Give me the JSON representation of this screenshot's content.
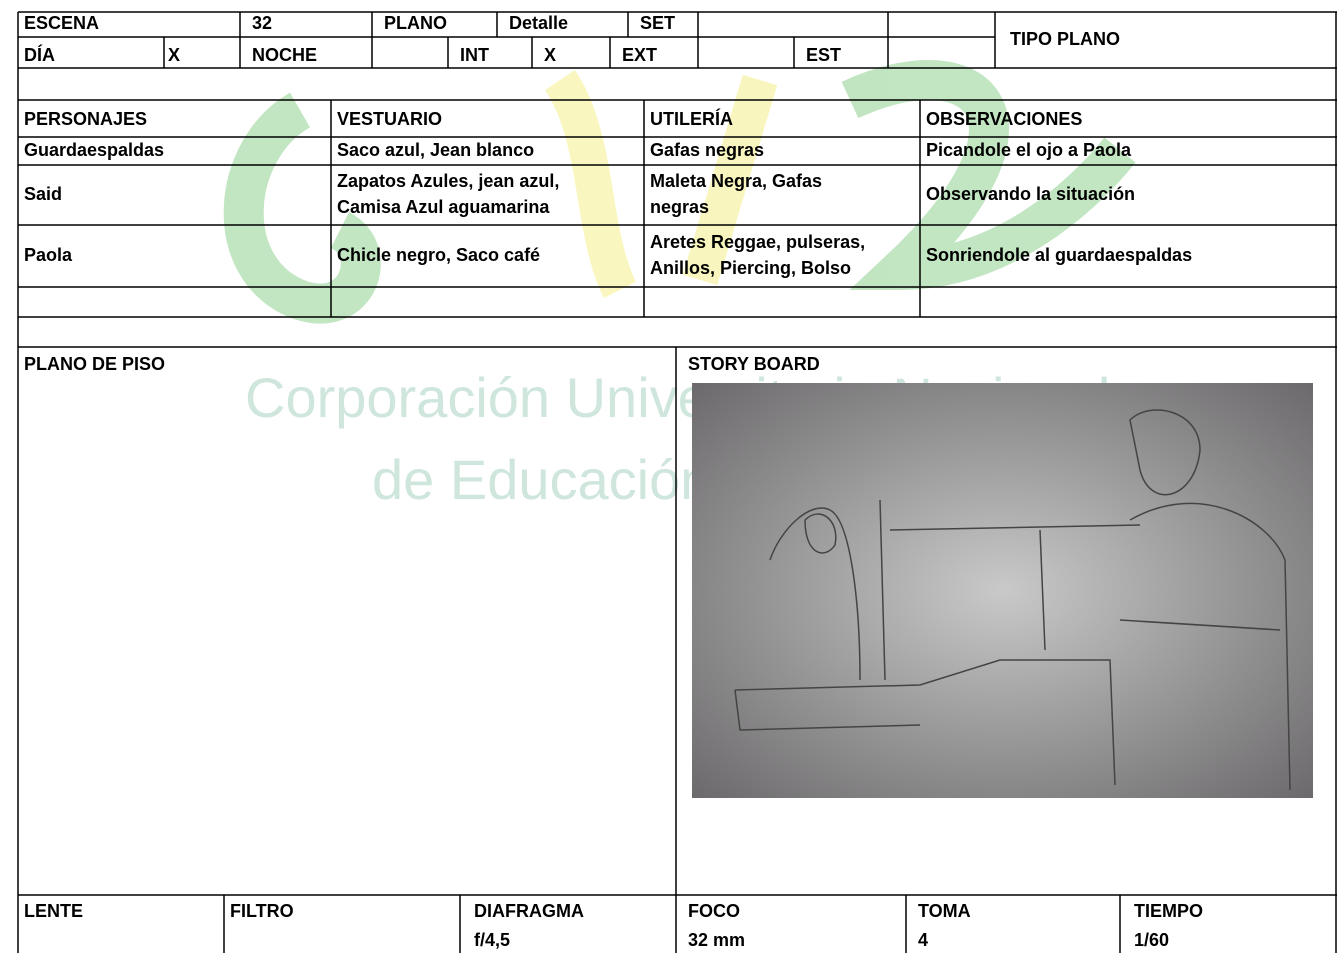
{
  "header": {
    "escena_label": "ESCENA",
    "escena": "32",
    "plano_label": "PLANO",
    "plano": "Detalle",
    "set_label": "SET",
    "tipo_plano_label": "TIPO PLANO",
    "dia_label": "DÍA",
    "dia": "X",
    "noche_label": "NOCHE",
    "int_label": "INT",
    "int": "X",
    "ext_label": "EXT",
    "est_label": "EST"
  },
  "breakdown": {
    "columns": [
      "PERSONAJES",
      "VESTUARIO",
      "UTILERÍA",
      "OBSERVACIONES"
    ],
    "rows": [
      [
        [
          "Guardaespaldas"
        ],
        [
          "Saco azul, Jean blanco"
        ],
        [
          "Gafas negras"
        ],
        [
          "Picandole el ojo a Paola"
        ]
      ],
      [
        [
          "Said"
        ],
        [
          "Zapatos Azules, jean azul,",
          "Camisa Azul aguamarina"
        ],
        [
          "Maleta Negra, Gafas",
          "negras"
        ],
        [
          "Observando la situación"
        ]
      ],
      [
        [
          "Paola"
        ],
        [
          "Chicle negro, Saco café"
        ],
        [
          "Aretes Reggae, pulseras,",
          "Anillos, Piercing, Bolso"
        ],
        [
          "Sonriendole al guardaespaldas"
        ]
      ]
    ]
  },
  "sections": {
    "plano_de_piso": "PLANO DE PISO",
    "story_board": "STORY BOARD"
  },
  "watermark": [
    "Corporación Universitaria Nacional",
    "de Educación"
  ],
  "technical": {
    "columns": [
      "LENTE",
      "FILTRO",
      "DIAFRAGMA",
      "FOCO",
      "TOMA",
      "TIEMPO"
    ],
    "values": {
      "diafragma": "f/4,5",
      "foco": "32 mm",
      "toma": "4",
      "tiempo": "1/60"
    }
  }
}
